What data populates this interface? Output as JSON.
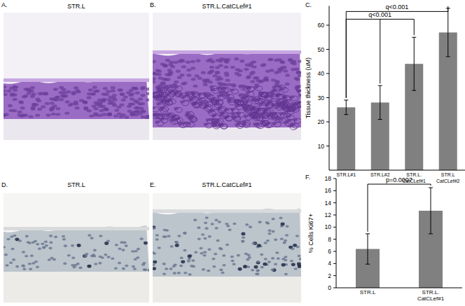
{
  "panels": [
    {
      "label": "A.",
      "title": "STR.L"
    },
    {
      "label": "B.",
      "title": "STR.L.CatCLef#1"
    },
    {
      "label": "D.",
      "title": "STR.L"
    },
    {
      "label": "E.",
      "title": "STR.L.CatCLef#1"
    }
  ],
  "chart_data": [
    {
      "type": "bar",
      "title": "C.",
      "categories": [
        "STR.L#1",
        "STR.L#2",
        "STR.L.\nCatCLef#1",
        "STR.L\nCatCLef#2"
      ],
      "values": [
        26,
        28,
        44,
        57
      ],
      "errors": [
        3,
        7,
        11,
        10
      ],
      "color": "#808080",
      "ylabel": "Tissue thickness (uM)",
      "ylim": [
        0,
        68
      ],
      "yticks": [
        10,
        20,
        30,
        40,
        50,
        60
      ],
      "annotations": [
        "q<0.001",
        "q<0.001"
      ]
    },
    {
      "type": "bar",
      "title": "F.",
      "categories": [
        "STR.L",
        "STR.L.\nCatCLef#1"
      ],
      "values": [
        6.4,
        12.7
      ],
      "errors": [
        2.5,
        3.8
      ],
      "color": "#808080",
      "ylabel": "% Cells Ki67+",
      "ylim": [
        0,
        18
      ],
      "yticks": [
        0,
        2,
        4,
        6,
        8,
        10,
        12,
        14,
        16,
        18
      ],
      "annotations": [
        "p=0.0007"
      ]
    }
  ]
}
